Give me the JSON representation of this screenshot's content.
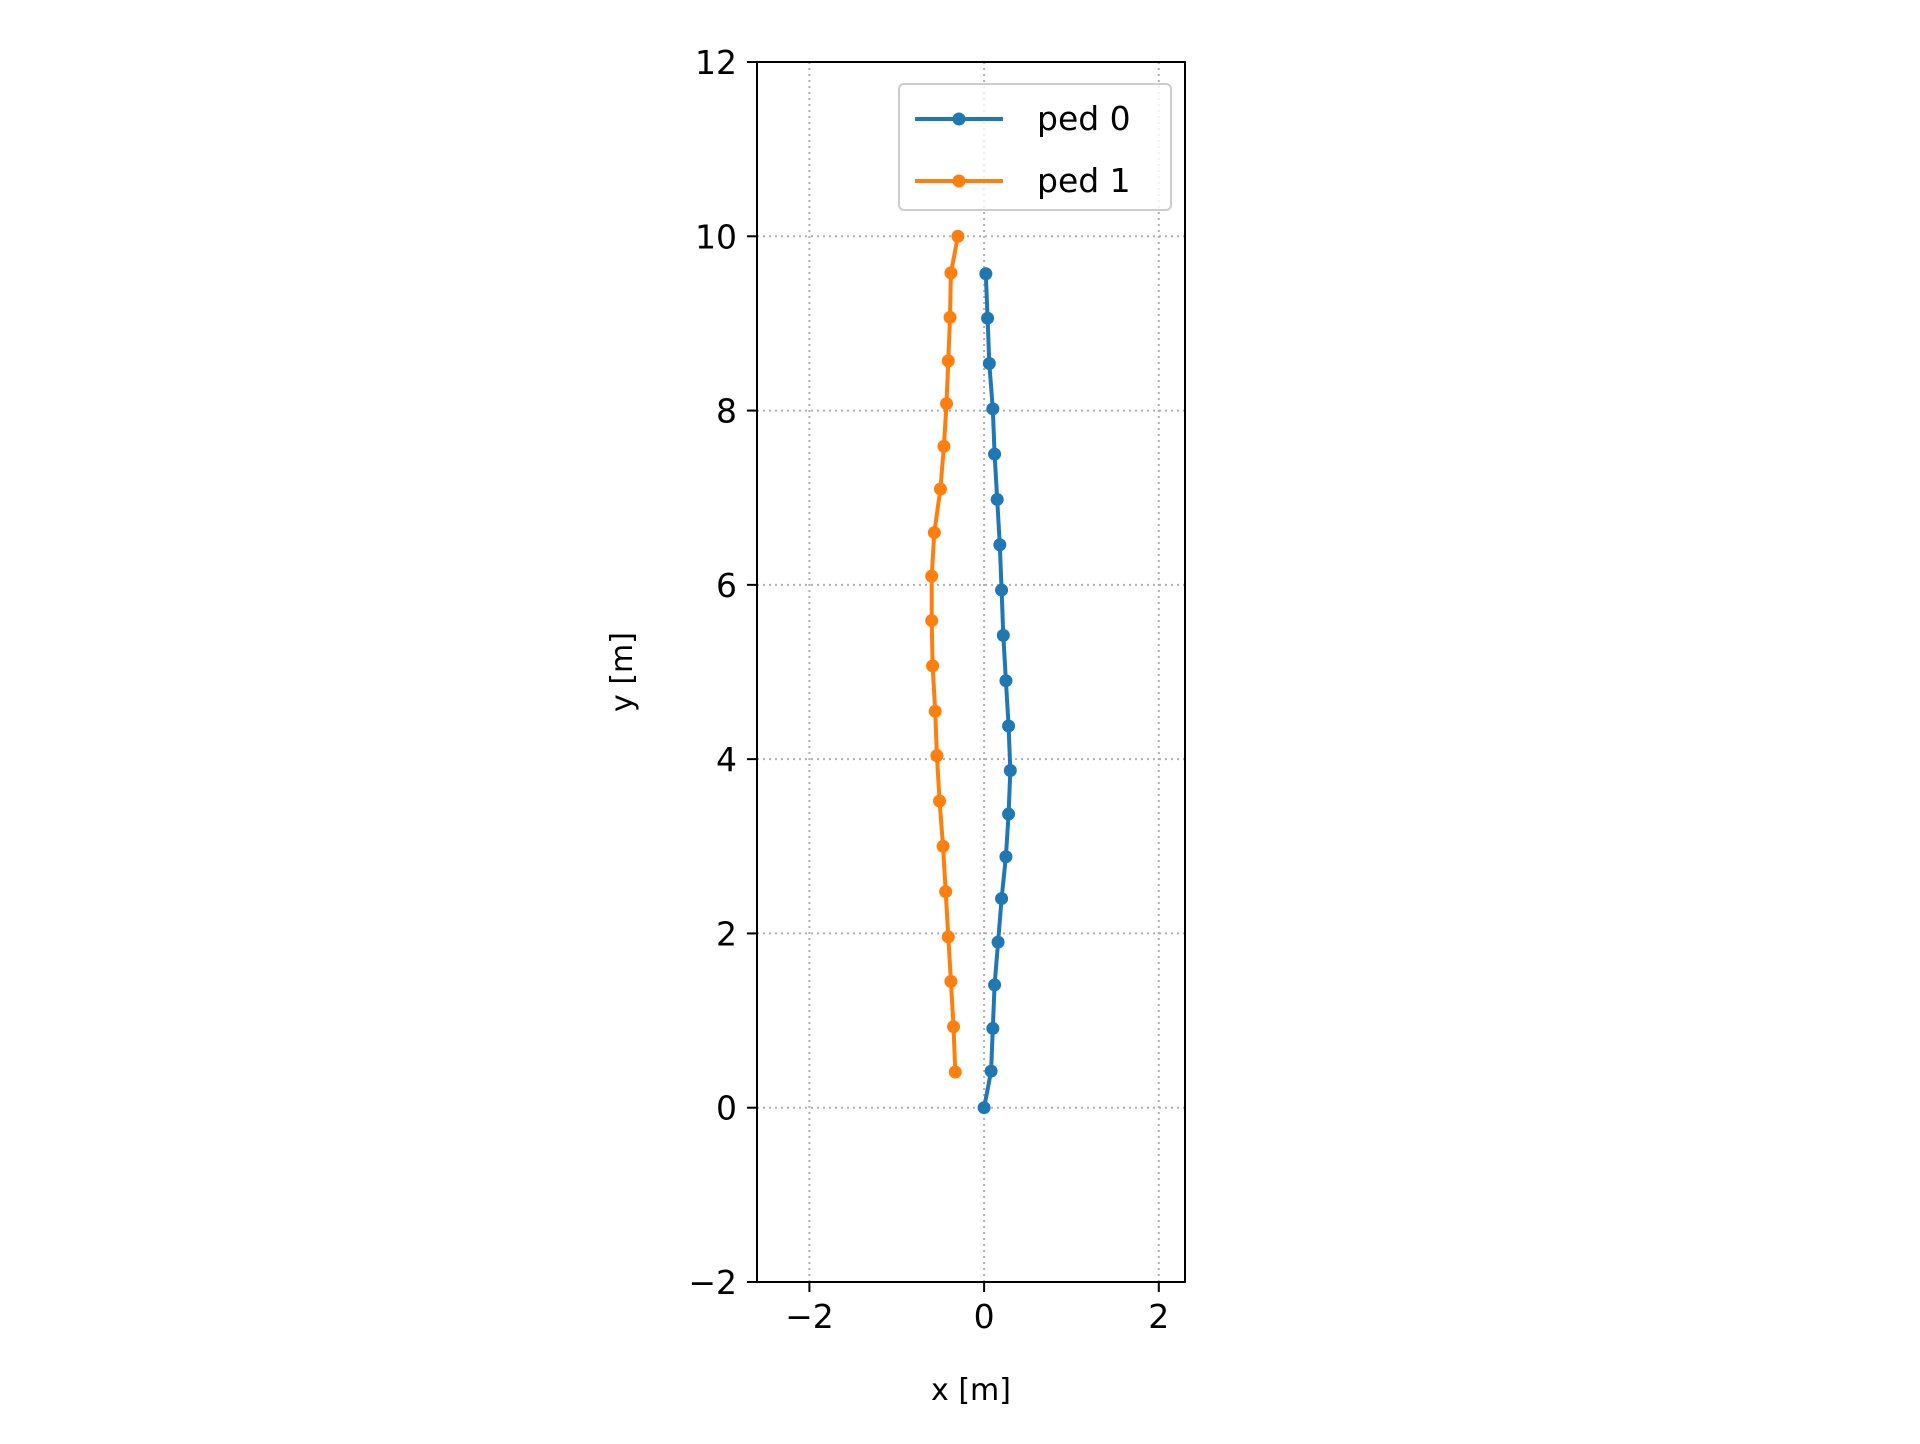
{
  "chart_data": {
    "type": "line",
    "title": "",
    "xlabel": "x [m]",
    "ylabel": "y [m]",
    "xlim": [
      -2.6,
      2.3
    ],
    "ylim": [
      -2,
      12
    ],
    "xticks": [
      -2,
      0,
      2
    ],
    "yticks": [
      -2,
      0,
      2,
      4,
      6,
      8,
      10,
      12
    ],
    "xtick_labels": [
      "−2",
      "0",
      "2"
    ],
    "ytick_labels": [
      "−2",
      "0",
      "2",
      "4",
      "6",
      "8",
      "10",
      "12"
    ],
    "grid": true,
    "legend_placement": "upper right",
    "series": [
      {
        "name": "ped 0",
        "color": "#1f77b4",
        "marker": "circle",
        "x": [
          0.0,
          0.08,
          0.1,
          0.12,
          0.16,
          0.2,
          0.25,
          0.28,
          0.3,
          0.28,
          0.25,
          0.22,
          0.2,
          0.18,
          0.15,
          0.12,
          0.1,
          0.06,
          0.04,
          0.02
        ],
        "y": [
          0.0,
          0.42,
          0.91,
          1.41,
          1.9,
          2.4,
          2.88,
          3.37,
          3.87,
          4.38,
          4.9,
          5.42,
          5.94,
          6.46,
          6.98,
          7.5,
          8.02,
          8.54,
          9.06,
          9.57
        ]
      },
      {
        "name": "ped 1",
        "color": "#ff7f0e",
        "marker": "circle",
        "x": [
          -0.33,
          -0.35,
          -0.38,
          -0.41,
          -0.44,
          -0.47,
          -0.51,
          -0.54,
          -0.56,
          -0.59,
          -0.6,
          -0.6,
          -0.57,
          -0.5,
          -0.46,
          -0.43,
          -0.41,
          -0.39,
          -0.38,
          -0.3
        ],
        "y": [
          0.41,
          0.93,
          1.45,
          1.96,
          2.48,
          3.0,
          3.52,
          4.04,
          4.55,
          5.07,
          5.59,
          6.1,
          6.6,
          7.1,
          7.59,
          8.08,
          8.57,
          9.07,
          9.58,
          10.0
        ]
      }
    ]
  }
}
